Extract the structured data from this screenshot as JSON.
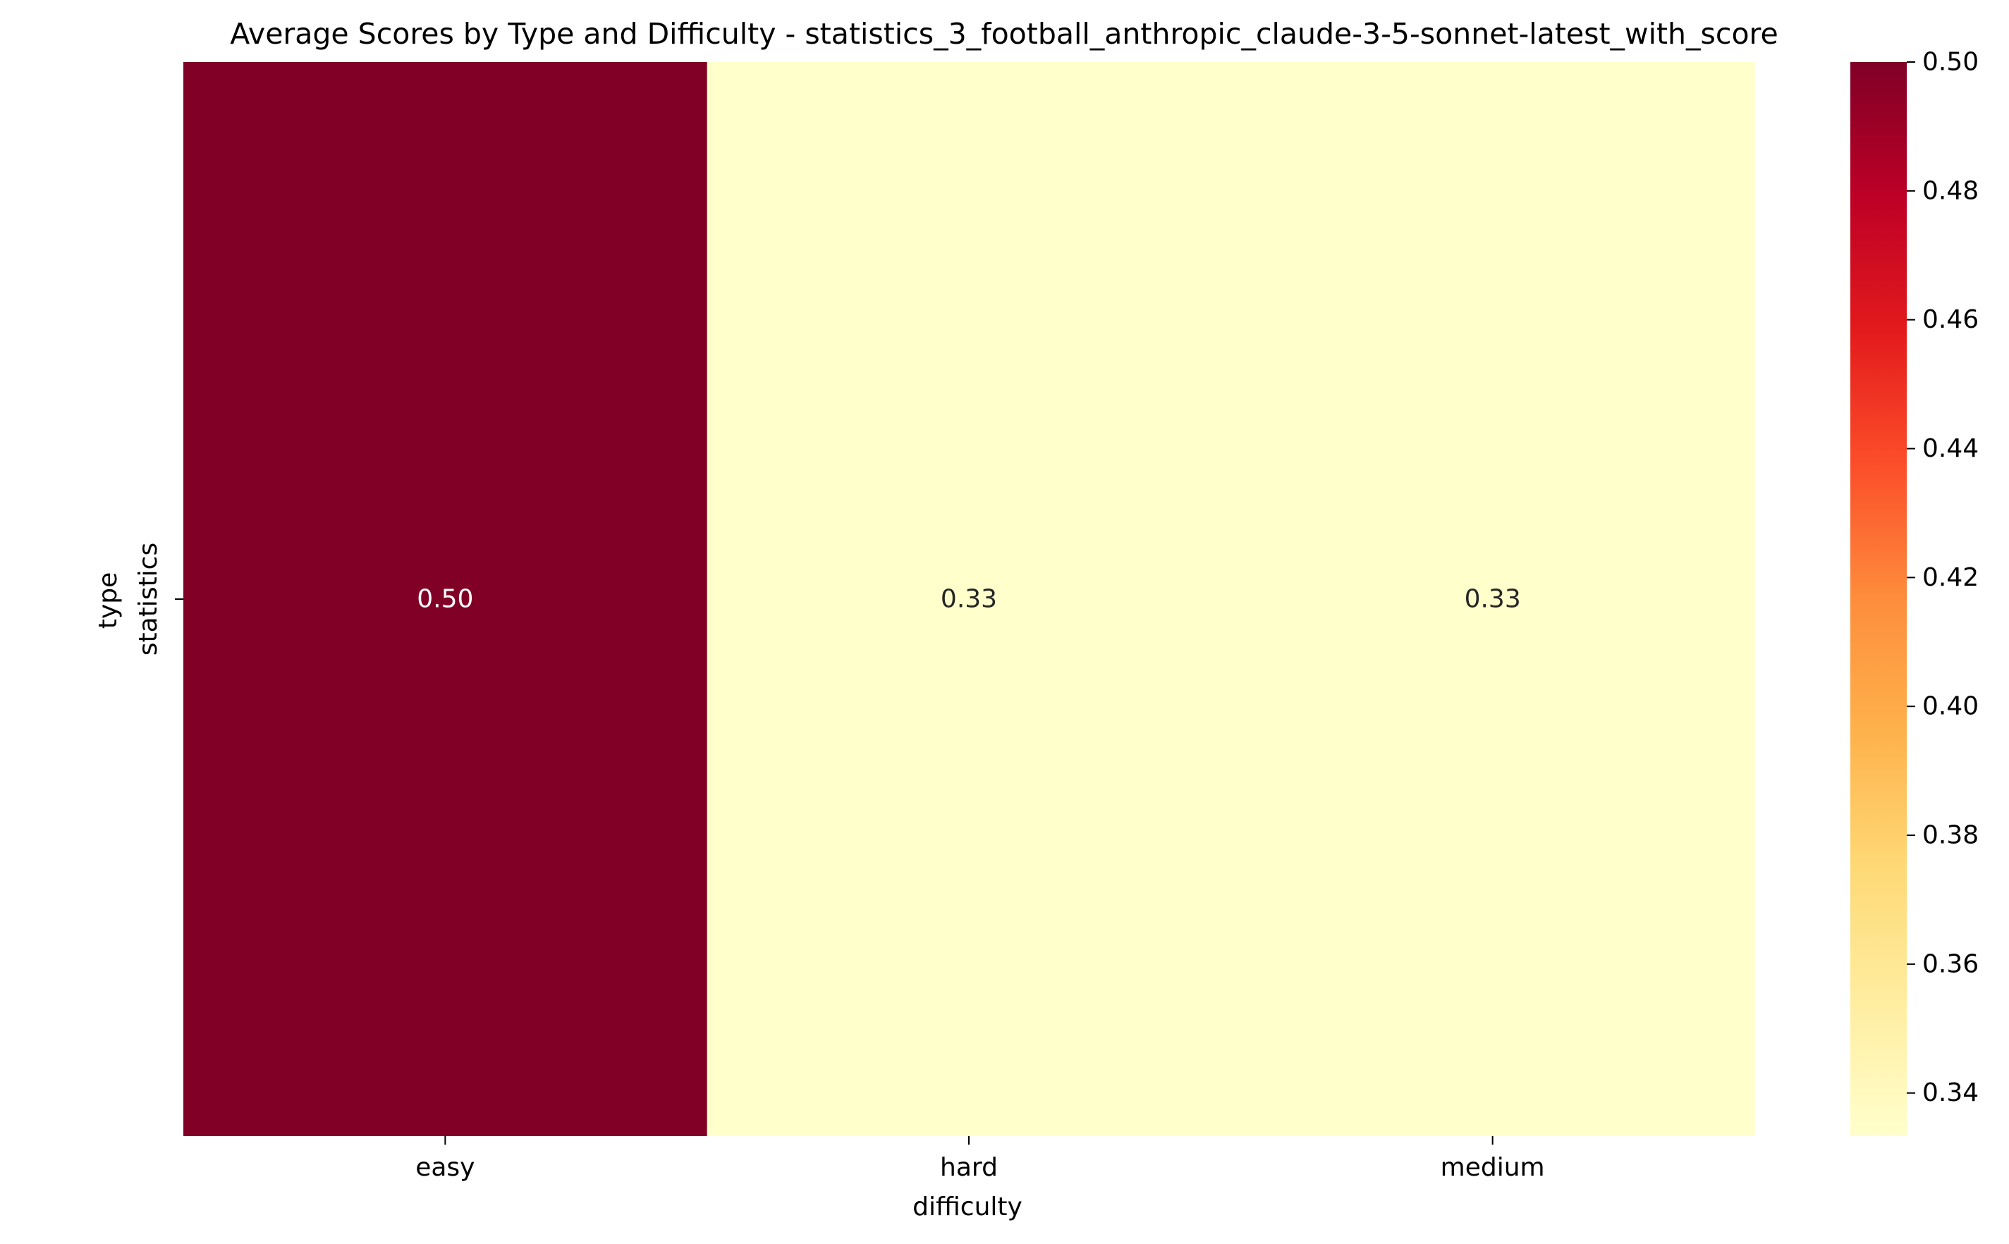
{
  "chart_data": {
    "type": "heatmap",
    "title": "Average Scores by Type and Difficulty - statistics_3_football_anthropic_claude-3-5-sonnet-latest_with_score",
    "xlabel": "difficulty",
    "ylabel": "type",
    "x_categories": [
      "easy",
      "hard",
      "medium"
    ],
    "y_categories": [
      "statistics"
    ],
    "values": [
      [
        0.5,
        0.3333,
        0.3333
      ]
    ],
    "annotations": [
      [
        "0.50",
        "0.33",
        "0.33"
      ]
    ],
    "colormap": "YlOrRd",
    "vmin": 0.3333,
    "vmax": 0.5,
    "colorbar": {
      "ticks": [
        0.34,
        0.36,
        0.38,
        0.4,
        0.42,
        0.44,
        0.46,
        0.48,
        0.5
      ],
      "tick_labels": [
        "0.34",
        "0.36",
        "0.38",
        "0.40",
        "0.42",
        "0.44",
        "0.46",
        "0.48",
        "0.50"
      ]
    },
    "colorbar_stops": [
      "#ffffcc",
      "#ffeda0",
      "#fed976",
      "#feb24c",
      "#fd8d3c",
      "#fc4e2a",
      "#e31a1c",
      "#bd0026",
      "#800026"
    ],
    "grid": false,
    "legend": "colorbar-right"
  }
}
